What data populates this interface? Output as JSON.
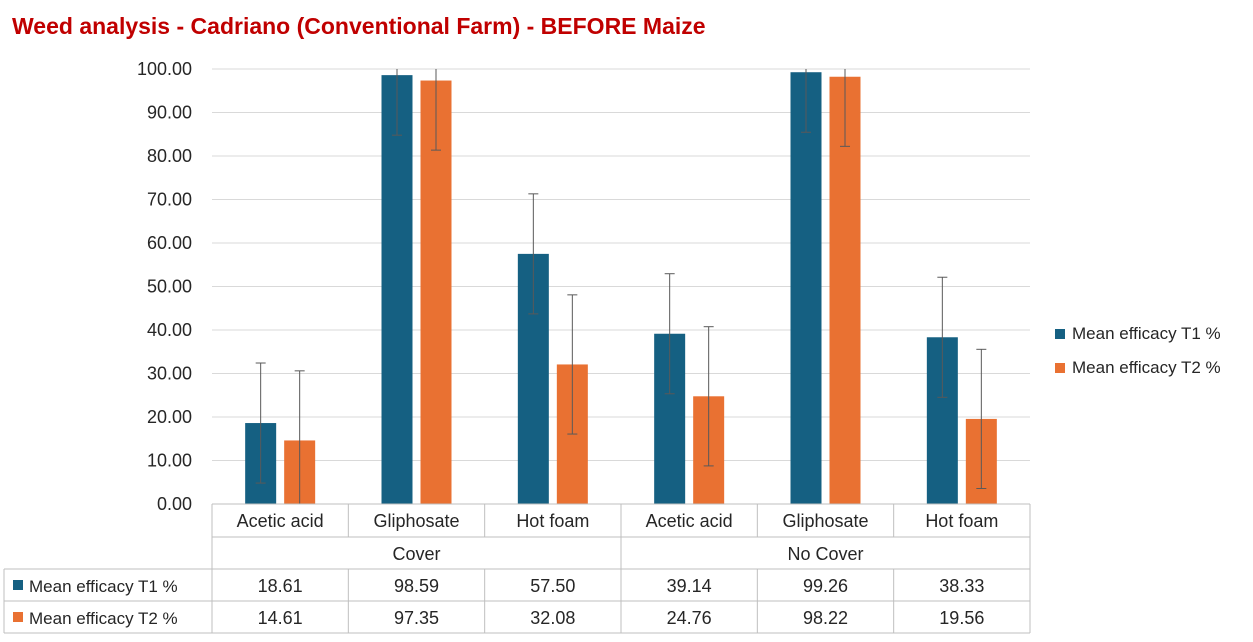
{
  "chart_data": {
    "type": "bar",
    "title": "Weed analysis - Cadriano (Conventional Farm) - BEFORE Maize",
    "xlabel": "",
    "ylabel": "",
    "ylim": [
      0,
      100
    ],
    "y_ticks": [
      "0.00",
      "10.00",
      "20.00",
      "30.00",
      "40.00",
      "50.00",
      "60.00",
      "70.00",
      "80.00",
      "90.00",
      "100.00"
    ],
    "groups": [
      {
        "name": "Cover",
        "categories": [
          "Acetic acid",
          "Gliphosate",
          "Hot foam"
        ]
      },
      {
        "name": "No Cover",
        "categories": [
          "Acetic acid",
          "Gliphosate",
          "Hot foam"
        ]
      }
    ],
    "categories": [
      "Acetic acid",
      "Gliphosate",
      "Hot foam",
      "Acetic acid",
      "Gliphosate",
      "Hot foam"
    ],
    "series": [
      {
        "name": "Mean efficacy T1 %",
        "color": "#156082",
        "values": [
          18.61,
          98.59,
          57.5,
          39.14,
          99.26,
          38.33
        ],
        "labels": [
          "18.61",
          "98.59",
          "57.50",
          "39.14",
          "99.26",
          "38.33"
        ],
        "error_plus_minus": [
          13.8,
          13.8,
          13.8,
          13.8,
          13.8,
          13.8
        ]
      },
      {
        "name": "Mean efficacy T2 %",
        "color": "#e97132",
        "values": [
          14.61,
          97.35,
          32.08,
          24.76,
          98.22,
          19.56
        ],
        "labels": [
          "14.61",
          "97.35",
          "32.08",
          "24.76",
          "98.22",
          "19.56"
        ],
        "error_plus_minus": [
          16.0,
          16.0,
          16.0,
          16.0,
          16.0,
          16.0
        ]
      }
    ],
    "grid": true,
    "legend_position": "right",
    "data_table": true
  }
}
